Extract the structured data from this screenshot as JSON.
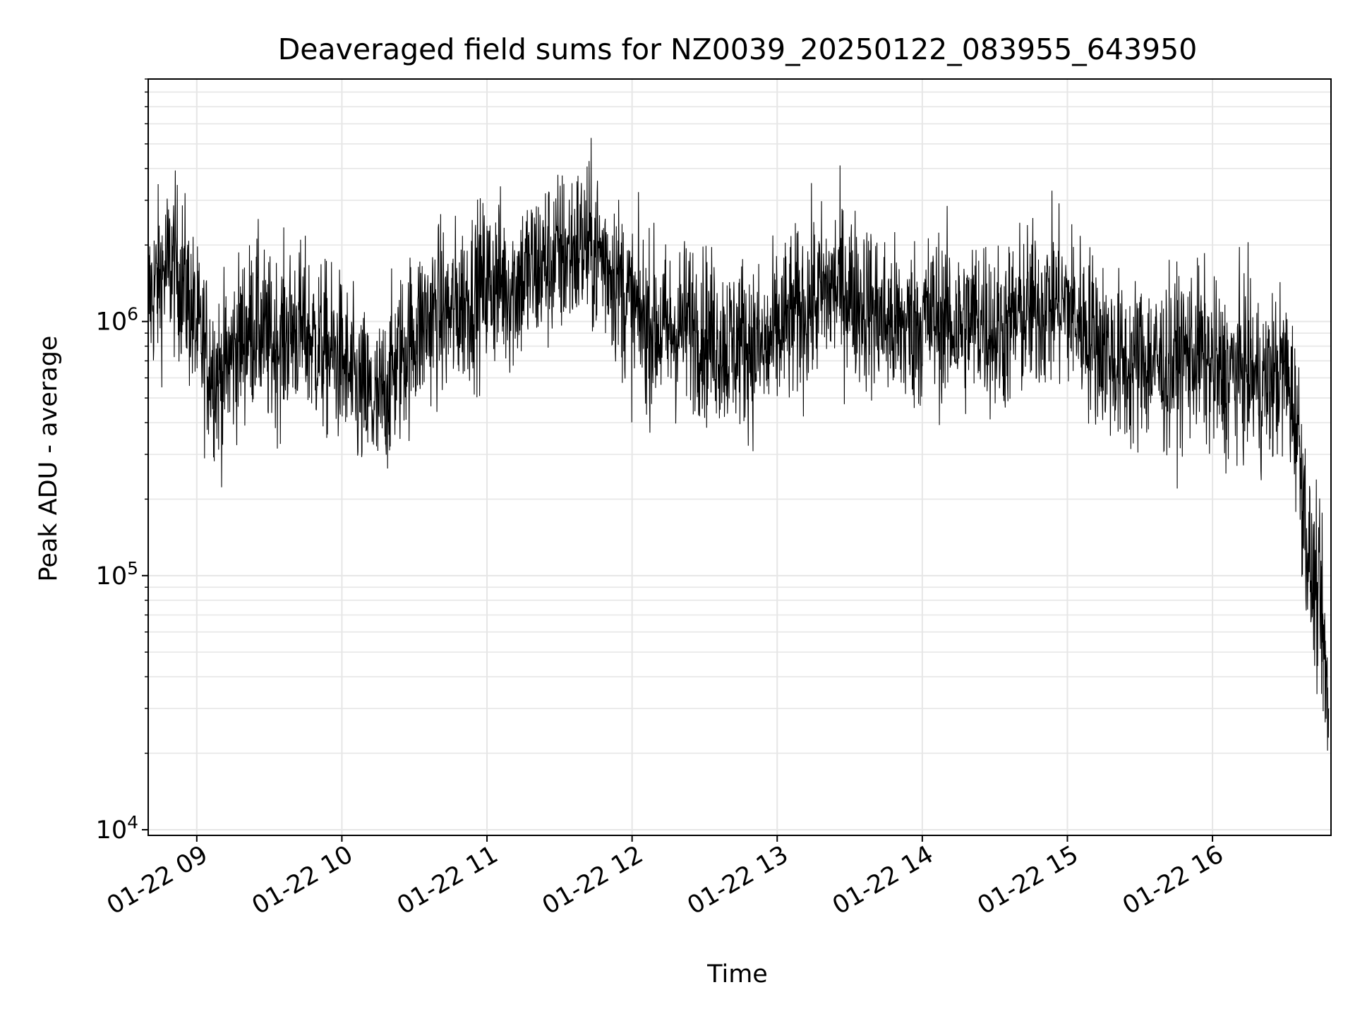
{
  "chart_data": {
    "type": "line",
    "title": "Deaveraged field sums for NZ0039_20250122_083955_643950",
    "xlabel": "Time",
    "ylabel": "Peak ADU - average",
    "y_scale": "log",
    "ylim": [
      9500,
      9000000
    ],
    "y_ticks": [
      {
        "value": 10000,
        "base": "10",
        "exp": "4"
      },
      {
        "value": 100000,
        "base": "10",
        "exp": "5"
      },
      {
        "value": 1000000,
        "base": "10",
        "exp": "6"
      }
    ],
    "xlim": [
      "2025-01-22 08:39:55",
      "2025-01-22 16:49:00"
    ],
    "x_ticks": [
      {
        "label": "01-22 09",
        "time": "2025-01-22 09:00"
      },
      {
        "label": "01-22 10",
        "time": "2025-01-22 10:00"
      },
      {
        "label": "01-22 11",
        "time": "2025-01-22 11:00"
      },
      {
        "label": "01-22 12",
        "time": "2025-01-22 12:00"
      },
      {
        "label": "01-22 13",
        "time": "2025-01-22 13:00"
      },
      {
        "label": "01-22 14",
        "time": "2025-01-22 14:00"
      },
      {
        "label": "01-22 15",
        "time": "2025-01-22 15:00"
      },
      {
        "label": "01-22 16",
        "time": "2025-01-22 16:00"
      }
    ],
    "grid": true,
    "line_color": "#000000",
    "grid_color": "#e6e6e6",
    "series": [
      {
        "x": [
          "2025-01-22 08:40",
          "2025-01-22 08:45",
          "2025-01-22 08:50",
          "2025-01-22 08:55",
          "2025-01-22 09:00",
          "2025-01-22 09:05",
          "2025-01-22 09:10",
          "2025-01-22 09:15",
          "2025-01-22 09:20",
          "2025-01-22 09:25",
          "2025-01-22 09:30",
          "2025-01-22 09:35",
          "2025-01-22 09:40",
          "2025-01-22 09:45",
          "2025-01-22 09:50",
          "2025-01-22 09:55",
          "2025-01-22 10:00",
          "2025-01-22 10:05",
          "2025-01-22 10:10",
          "2025-01-22 10:15",
          "2025-01-22 10:20",
          "2025-01-22 10:25",
          "2025-01-22 10:30",
          "2025-01-22 10:35",
          "2025-01-22 10:40",
          "2025-01-22 10:45",
          "2025-01-22 10:50",
          "2025-01-22 10:55",
          "2025-01-22 11:00",
          "2025-01-22 11:05",
          "2025-01-22 11:10",
          "2025-01-22 11:15",
          "2025-01-22 11:20",
          "2025-01-22 11:25",
          "2025-01-22 11:30",
          "2025-01-22 11:35",
          "2025-01-22 11:40",
          "2025-01-22 11:45",
          "2025-01-22 11:50",
          "2025-01-22 11:55",
          "2025-01-22 12:00",
          "2025-01-22 12:05",
          "2025-01-22 12:10",
          "2025-01-22 12:15",
          "2025-01-22 12:20",
          "2025-01-22 12:25",
          "2025-01-22 12:30",
          "2025-01-22 12:35",
          "2025-01-22 12:40",
          "2025-01-22 12:45",
          "2025-01-22 12:50",
          "2025-01-22 12:55",
          "2025-01-22 13:00",
          "2025-01-22 13:05",
          "2025-01-22 13:10",
          "2025-01-22 13:15",
          "2025-01-22 13:20",
          "2025-01-22 13:25",
          "2025-01-22 13:30",
          "2025-01-22 13:35",
          "2025-01-22 13:40",
          "2025-01-22 13:45",
          "2025-01-22 13:50",
          "2025-01-22 13:55",
          "2025-01-22 14:00",
          "2025-01-22 14:05",
          "2025-01-22 14:10",
          "2025-01-22 14:15",
          "2025-01-22 14:20",
          "2025-01-22 14:25",
          "2025-01-22 14:30",
          "2025-01-22 14:35",
          "2025-01-22 14:40",
          "2025-01-22 14:45",
          "2025-01-22 14:50",
          "2025-01-22 14:55",
          "2025-01-22 15:00",
          "2025-01-22 15:05",
          "2025-01-22 15:10",
          "2025-01-22 15:15",
          "2025-01-22 15:20",
          "2025-01-22 15:25",
          "2025-01-22 15:30",
          "2025-01-22 15:35",
          "2025-01-22 15:40",
          "2025-01-22 15:45",
          "2025-01-22 15:50",
          "2025-01-22 15:55",
          "2025-01-22 16:00",
          "2025-01-22 16:05",
          "2025-01-22 16:10",
          "2025-01-22 16:15",
          "2025-01-22 16:20",
          "2025-01-22 16:25",
          "2025-01-22 16:30",
          "2025-01-22 16:35",
          "2025-01-22 16:40",
          "2025-01-22 16:45",
          "2025-01-22 16:48"
        ],
        "values": [
          1200000,
          1500000,
          1700000,
          1400000,
          900000,
          700000,
          600000,
          750000,
          900000,
          1000000,
          800000,
          850000,
          950000,
          900000,
          800000,
          750000,
          700000,
          550000,
          500000,
          450000,
          600000,
          750000,
          900000,
          1000000,
          1100000,
          1050000,
          1200000,
          1300000,
          1400000,
          1450000,
          1350000,
          1500000,
          1600000,
          1700000,
          1800000,
          1900000,
          2000000,
          1900000,
          1700000,
          1400000,
          1100000,
          1000000,
          950000,
          900000,
          950000,
          1000000,
          900000,
          850000,
          800000,
          850000,
          800000,
          750000,
          900000,
          1000000,
          1100000,
          1200000,
          1300000,
          1400000,
          1300000,
          1200000,
          1100000,
          1000000,
          950000,
          950000,
          1000000,
          1050000,
          1000000,
          950000,
          1000000,
          1050000,
          900000,
          950000,
          1050000,
          1100000,
          1150000,
          1200000,
          1150000,
          1000000,
          900000,
          800000,
          700000,
          650000,
          700000,
          700000,
          650000,
          700000,
          750000,
          750000,
          650000,
          600000,
          650000,
          650000,
          550000,
          600000,
          650000,
          400000,
          110000,
          70000,
          30000
        ]
      }
    ]
  }
}
